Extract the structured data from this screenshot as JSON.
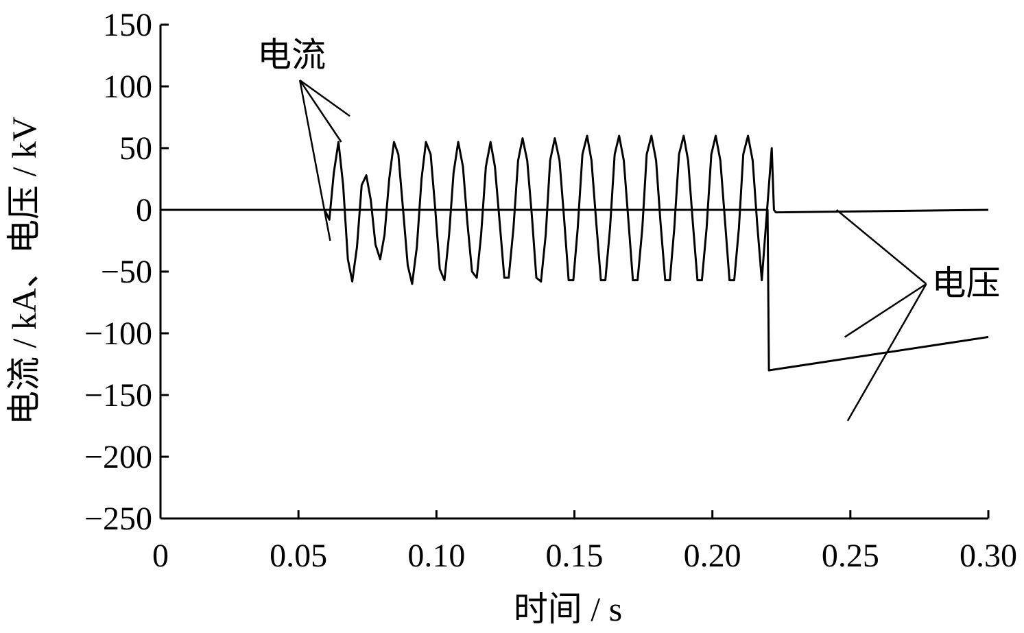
{
  "chart_data": {
    "type": "line",
    "xlabel": "时间 / s",
    "ylabel": "电流 / kA、电压 / kV",
    "xlim": [
      0,
      0.3
    ],
    "ylim": [
      -250,
      150
    ],
    "x_ticks": [
      {
        "value": 0,
        "label": "0"
      },
      {
        "value": 0.05,
        "label": "0.05"
      },
      {
        "value": 0.1,
        "label": "0.10"
      },
      {
        "value": 0.15,
        "label": "0.15"
      },
      {
        "value": 0.2,
        "label": "0.20"
      },
      {
        "value": 0.25,
        "label": "0.25"
      },
      {
        "value": 0.3,
        "label": "0.30"
      }
    ],
    "y_ticks": [
      {
        "value": 150,
        "label": "150"
      },
      {
        "value": 100,
        "label": "100"
      },
      {
        "value": 50,
        "label": "50"
      },
      {
        "value": 0,
        "label": "0"
      },
      {
        "value": -50,
        "label": "−50"
      },
      {
        "value": -100,
        "label": "−100"
      },
      {
        "value": -150,
        "label": "−150"
      },
      {
        "value": -200,
        "label": "−200"
      },
      {
        "value": -250,
        "label": "−250"
      }
    ],
    "annotations": [
      {
        "text": "电流",
        "target": "current",
        "anchor": [
          0.0505,
          105
        ],
        "points": [
          [
            0.0686,
            76
          ],
          [
            0.0655,
            55
          ],
          [
            0.0615,
            -25
          ]
        ]
      },
      {
        "text": "电压",
        "target": "voltage",
        "anchor": [
          0.2775,
          -60
        ],
        "points": [
          [
            0.245,
            0
          ],
          [
            0.248,
            -103
          ],
          [
            0.249,
            -171
          ]
        ]
      }
    ],
    "series": [
      {
        "type": "current",
        "x": [
          0,
          0.0595,
          0.0612,
          0.0628,
          0.0645,
          0.0662,
          0.0679,
          0.0695,
          0.0712,
          0.0729,
          0.0746,
          0.0762,
          0.0779,
          0.0796,
          0.0812,
          0.0829,
          0.0846,
          0.0862,
          0.0879,
          0.0896,
          0.0912,
          0.0929,
          0.0946,
          0.0962,
          0.0979,
          0.0996,
          0.1012,
          0.1029,
          0.1046,
          0.1062,
          0.1079,
          0.1096,
          0.1112,
          0.1129,
          0.1146,
          0.1162,
          0.1179,
          0.1196,
          0.1212,
          0.1229,
          0.1246,
          0.1262,
          0.1279,
          0.1296,
          0.1312,
          0.1329,
          0.1346,
          0.1362,
          0.1379,
          0.1396,
          0.1412,
          0.1429,
          0.1446,
          0.1462,
          0.1479,
          0.1496,
          0.1512,
          0.1529,
          0.1546,
          0.1562,
          0.1579,
          0.1596,
          0.1612,
          0.1629,
          0.1646,
          0.1662,
          0.1679,
          0.1696,
          0.1712,
          0.1729,
          0.1746,
          0.1762,
          0.1779,
          0.1796,
          0.1812,
          0.1829,
          0.1846,
          0.1862,
          0.1879,
          0.1896,
          0.1912,
          0.1929,
          0.1946,
          0.1962,
          0.1979,
          0.1996,
          0.2012,
          0.2029,
          0.2046,
          0.2062,
          0.2079,
          0.2096,
          0.2112,
          0.2129,
          0.2146,
          0.2162,
          0.2179,
          0.2215,
          0.2223,
          0.223,
          0.3
        ],
        "y": [
          0,
          0,
          -8,
          30,
          55,
          20,
          -40,
          -58,
          -30,
          20,
          28,
          8,
          -28,
          -40,
          -20,
          25,
          55,
          45,
          0,
          -45,
          -60,
          -30,
          25,
          55,
          45,
          0,
          -48,
          -57,
          -20,
          30,
          55,
          35,
          -10,
          -50,
          -55,
          -20,
          35,
          55,
          35,
          -10,
          -55,
          -55,
          -15,
          40,
          58,
          40,
          -5,
          -55,
          -58,
          -20,
          40,
          58,
          40,
          -5,
          -57,
          -57,
          -15,
          45,
          60,
          40,
          -10,
          -57,
          -57,
          -15,
          45,
          60,
          40,
          -10,
          -57,
          -57,
          -15,
          45,
          60,
          40,
          -10,
          -57,
          -57,
          -15,
          45,
          60,
          40,
          -10,
          -57,
          -57,
          -15,
          45,
          60,
          40,
          -10,
          -57,
          -57,
          -15,
          45,
          60,
          40,
          -10,
          -57,
          50,
          0,
          -2,
          0
        ]
      },
      {
        "type": "voltage",
        "x": [
          0,
          0.06,
          0.22,
          0.2205,
          0.3
        ],
        "y": [
          0,
          0,
          0,
          -130,
          -103
        ]
      }
    ]
  }
}
